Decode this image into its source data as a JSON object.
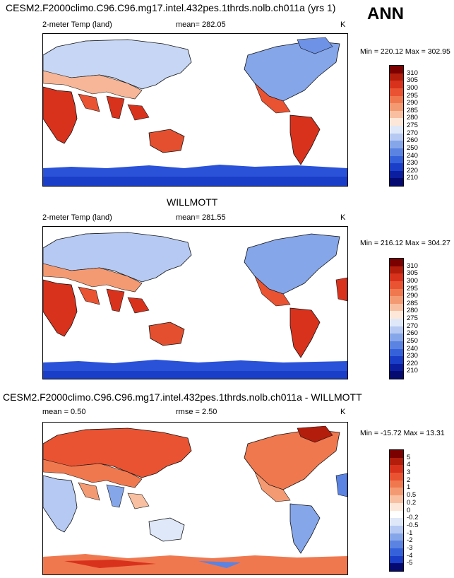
{
  "figure": {
    "season": "ANN",
    "panels": [
      {
        "title": "CESM2.F2000climo.C96.C96.mg17.intel.432pes.1thrds.nolb.ch011a (yrs 1)",
        "variable": "2-meter Temp (land)",
        "stat1": "mean= 282.05",
        "stat2": "",
        "units": "K",
        "minmax": "Min = 220.12 Max = 302.95",
        "colorbar": {
          "levels": [
            "310",
            "305",
            "300",
            "295",
            "290",
            "285",
            "280",
            "275",
            "270",
            "260",
            "250",
            "240",
            "230",
            "220",
            "210"
          ],
          "colors": [
            "#7b0000",
            "#b21d0c",
            "#d8321d",
            "#ea5332",
            "#f0784f",
            "#f49a72",
            "#f8c0a0",
            "#fde7d8",
            "#dfe8f8",
            "#b5c9f2",
            "#86a6ea",
            "#5a83e2",
            "#3562db",
            "#1a3ec8",
            "#0b1ea0",
            "#050a70"
          ]
        }
      },
      {
        "title": "WILLMOTT",
        "variable": "2-meter Temp (land)",
        "stat1": "mean= 281.55",
        "stat2": "",
        "units": "K",
        "minmax": "Min = 216.12 Max = 304.27",
        "colorbar": {
          "levels": [
            "310",
            "305",
            "300",
            "295",
            "290",
            "285",
            "280",
            "275",
            "270",
            "260",
            "250",
            "240",
            "230",
            "220",
            "210"
          ],
          "colors": [
            "#7b0000",
            "#b21d0c",
            "#d8321d",
            "#ea5332",
            "#f0784f",
            "#f49a72",
            "#f8c0a0",
            "#fde7d8",
            "#dfe8f8",
            "#b5c9f2",
            "#86a6ea",
            "#5a83e2",
            "#3562db",
            "#1a3ec8",
            "#0b1ea0",
            "#050a70"
          ]
        }
      },
      {
        "title": "CESM2.F2000climo.C96.C96.mg17.intel.432pes.1thrds.nolb.ch011a - WILLMOTT",
        "variable": "",
        "stat1": "mean =   0.50",
        "stat2": "rmse =   2.50",
        "units": "K",
        "minmax": "Min = -15.72 Max =  13.31",
        "colorbar": {
          "levels": [
            "5",
            "4",
            "3",
            "2",
            "1",
            "0.5",
            "0.2",
            "0",
            "-0.2",
            "-0.5",
            "-1",
            "-2",
            "-3",
            "-4",
            "-5"
          ],
          "colors": [
            "#7b0000",
            "#b21d0c",
            "#d8321d",
            "#ea5332",
            "#f0784f",
            "#f49a72",
            "#f8c0a0",
            "#fde7d8",
            "#ffffff",
            "#dfe8f8",
            "#b5c9f2",
            "#86a6ea",
            "#5a83e2",
            "#3562db",
            "#1a3ec8",
            "#050a70"
          ]
        }
      }
    ]
  }
}
